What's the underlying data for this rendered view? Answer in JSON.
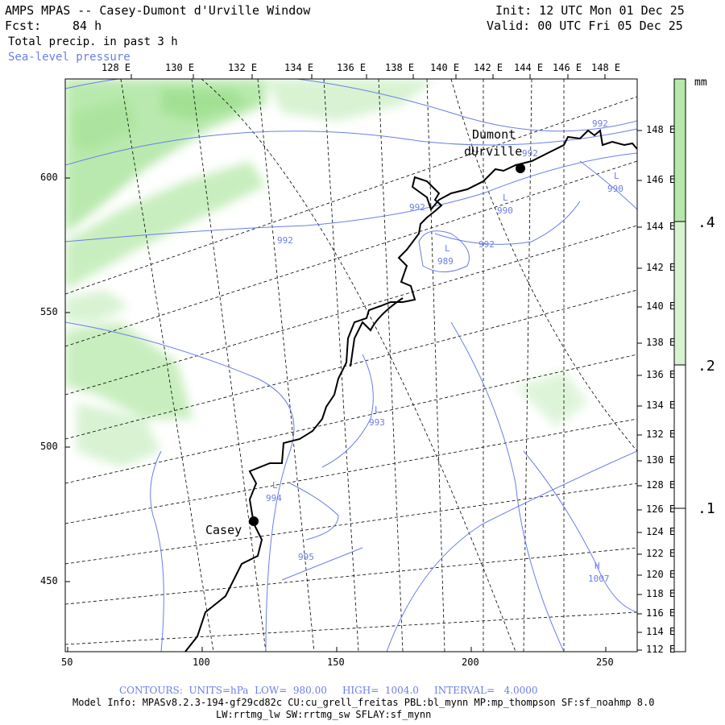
{
  "header": {
    "title": "AMPS MPAS -- Casey-Dumont d'Urville Window",
    "fcst_label": "Fcst:",
    "fcst_value": "84 h",
    "field": "Total precip. in past 3 h",
    "overlay": "Sea-level pressure",
    "init": "Init: 12 UTC Mon 01 Dec 25",
    "valid": "Valid: 00 UTC Fri 05 Dec 25"
  },
  "colors": {
    "precip_light": "#d6f2d0",
    "precip_mid": "#b6e8aa",
    "precip_strong": "#9ee08e",
    "slp_contour": "#6a7ee8",
    "graticule": "#000000",
    "coast": "#000000"
  },
  "axes": {
    "top_longitudes": [
      "128 E",
      "130 E",
      "132 E",
      "134 E",
      "136 E",
      "138 E",
      "140 E",
      "142 E",
      "144 E",
      "146 E",
      "148 E"
    ],
    "right_latitudes": [
      "148 E",
      "146 E",
      "144 E",
      "142 E",
      "140 E",
      "138 E",
      "136 E",
      "134 E",
      "132 E",
      "130 E",
      "128 E",
      "126 E",
      "124 E",
      "122 E",
      "120 E",
      "118 E",
      "116 E",
      "114 E",
      "112 E"
    ],
    "left_ticks": [
      "600",
      "550",
      "500",
      "450"
    ],
    "bottom_ticks": [
      "50",
      "100",
      "150",
      "200",
      "250"
    ]
  },
  "colorbar": {
    "unit": "mm",
    "labels": [
      ".4",
      ".2",
      ".1"
    ]
  },
  "stations": [
    {
      "name_line1": "Dumont",
      "name_line2": "dUrville"
    },
    {
      "name_line1": "Casey",
      "name_line2": ""
    }
  ],
  "slp_labels": [
    {
      "value": "992"
    },
    {
      "value": "992"
    },
    {
      "value": "992"
    },
    {
      "value": "992"
    },
    {
      "value": "992"
    },
    {
      "value": "990",
      "tag": "L"
    },
    {
      "value": "990",
      "tag": "L"
    },
    {
      "value": "989",
      "tag": "L"
    },
    {
      "value": "993",
      "tag": "L"
    },
    {
      "value": "994",
      "tag": "L"
    },
    {
      "value": "995"
    },
    {
      "value": "1007",
      "tag": "H"
    }
  ],
  "footer": {
    "contours": "CONTOURS:  UNITS=hPa  LOW=  980.00     HIGH=  1004.0     INTERVAL=   4.0000",
    "model_info": "Model Info: MPASv8.2.3-194-gf29cd82c CU:cu_grell_freitas PBL:bl_mynn MP:mp_thompson SF:sf_noahmp 8.0",
    "model_info2": "LW:rrtmg_lw SW:rrtmg_sw SFLAY:sf_mynn"
  }
}
